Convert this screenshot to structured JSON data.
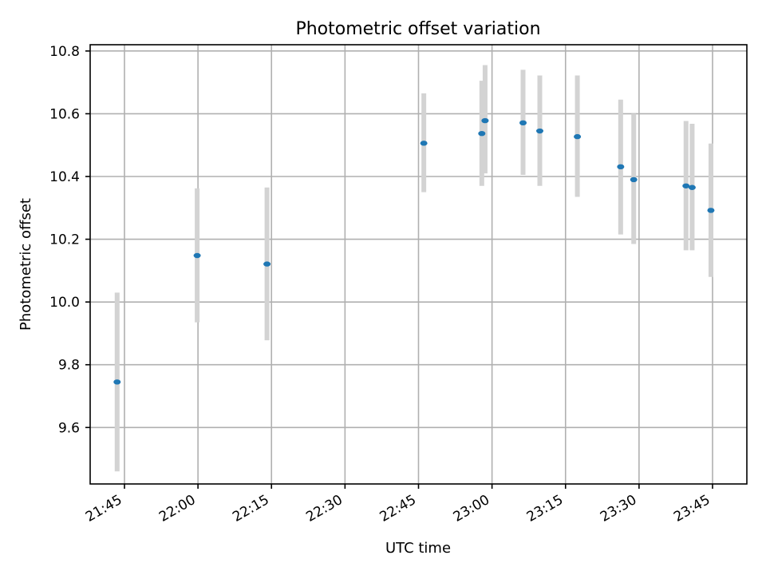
{
  "chart_data": {
    "type": "scatter",
    "title": "Photometric offset variation",
    "xlabel": "UTC time",
    "ylabel": "Photometric offset",
    "xlim": [
      "21:38",
      "23:52"
    ],
    "ylim": [
      9.42,
      10.82
    ],
    "xticks": [
      "21:45",
      "22:00",
      "22:15",
      "22:30",
      "22:45",
      "23:00",
      "23:15",
      "23:30",
      "23:45"
    ],
    "yticks": [
      "9.6",
      "9.8",
      "10.0",
      "10.2",
      "10.4",
      "10.6",
      "10.8"
    ],
    "grid": true,
    "colors": {
      "points": "#1f77b4",
      "errorbars": "#d3d3d3"
    },
    "points": [
      {
        "x": "21:43:30",
        "y": 9.745,
        "y_low": 9.46,
        "y_high": 10.03
      },
      {
        "x": "21:59:50",
        "y": 10.148,
        "y_low": 9.935,
        "y_high": 10.362
      },
      {
        "x": "22:14:05",
        "y": 10.121,
        "y_low": 9.878,
        "y_high": 10.365
      },
      {
        "x": "22:46:05",
        "y": 10.506,
        "y_low": 10.35,
        "y_high": 10.665
      },
      {
        "x": "22:57:55",
        "y": 10.537,
        "y_low": 10.37,
        "y_high": 10.705
      },
      {
        "x": "22:58:35",
        "y": 10.578,
        "y_low": 10.41,
        "y_high": 10.755
      },
      {
        "x": "23:06:20",
        "y": 10.571,
        "y_low": 10.405,
        "y_high": 10.74
      },
      {
        "x": "23:09:45",
        "y": 10.545,
        "y_low": 10.37,
        "y_high": 10.722
      },
      {
        "x": "23:17:25",
        "y": 10.527,
        "y_low": 10.335,
        "y_high": 10.722
      },
      {
        "x": "23:26:15",
        "y": 10.431,
        "y_low": 10.215,
        "y_high": 10.645
      },
      {
        "x": "23:28:55",
        "y": 10.39,
        "y_low": 10.185,
        "y_high": 10.6
      },
      {
        "x": "23:39:35",
        "y": 10.37,
        "y_low": 10.165,
        "y_high": 10.577
      },
      {
        "x": "23:40:50",
        "y": 10.365,
        "y_low": 10.165,
        "y_high": 10.568
      },
      {
        "x": "23:44:40",
        "y": 10.292,
        "y_low": 10.08,
        "y_high": 10.505
      }
    ]
  }
}
